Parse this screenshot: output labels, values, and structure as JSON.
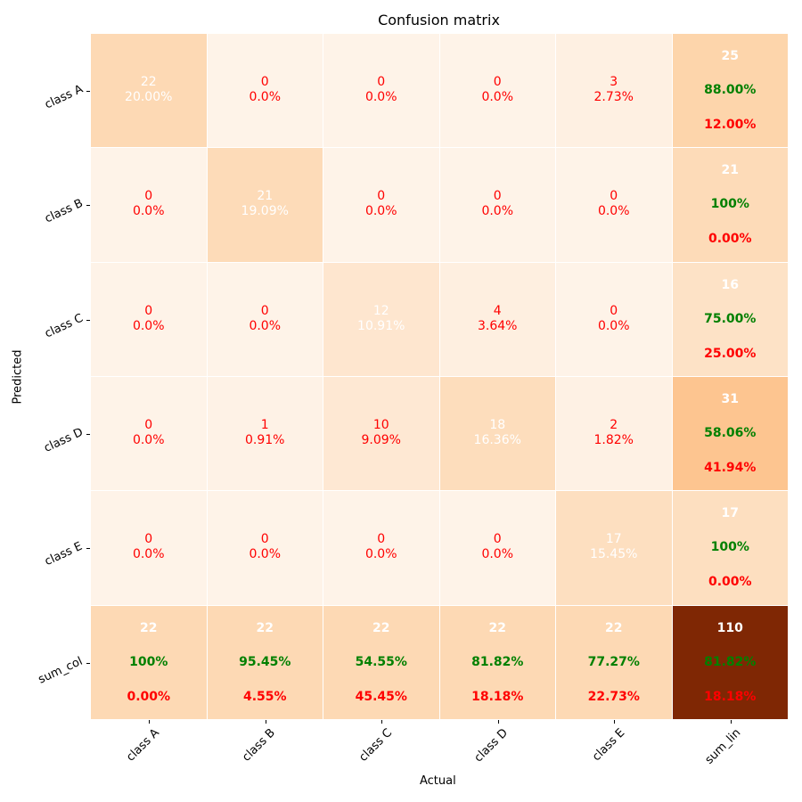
{
  "chart_data": {
    "type": "heatmap",
    "title": "Confusion matrix",
    "xlabel": "Actual",
    "ylabel": "Predicted",
    "x_tick_labels": [
      "class A",
      "class B",
      "class C",
      "class D",
      "class E",
      "sum_lin"
    ],
    "y_tick_labels": [
      "class A",
      "class B",
      "class C",
      "class D",
      "class E",
      "sum_col"
    ],
    "colormap": "Oranges",
    "rows": [
      [
        {
          "v": "22",
          "p": "20.00%",
          "c": "#fdd9b4",
          "w": true
        },
        {
          "v": "0",
          "p": "0.0%",
          "c": "#fef3e8"
        },
        {
          "v": "0",
          "p": "0.0%",
          "c": "#fef3e8"
        },
        {
          "v": "0",
          "p": "0.0%",
          "c": "#fef3e8"
        },
        {
          "v": "3",
          "p": "2.73%",
          "c": "#fef0e2"
        },
        {
          "v": "25",
          "g": "88.00%",
          "r": "12.00%",
          "c": "#fdd5ab"
        }
      ],
      [
        {
          "v": "0",
          "p": "0.0%",
          "c": "#fef3e8"
        },
        {
          "v": "21",
          "p": "19.09%",
          "c": "#fddbb8",
          "w": true
        },
        {
          "v": "0",
          "p": "0.0%",
          "c": "#fef3e8"
        },
        {
          "v": "0",
          "p": "0.0%",
          "c": "#fef3e8"
        },
        {
          "v": "0",
          "p": "0.0%",
          "c": "#fef3e8"
        },
        {
          "v": "21",
          "g": "100%",
          "r": "0.00%",
          "c": "#fddbb8"
        }
      ],
      [
        {
          "v": "0",
          "p": "0.0%",
          "c": "#fef3e8"
        },
        {
          "v": "0",
          "p": "0.0%",
          "c": "#fef3e8"
        },
        {
          "v": "12",
          "p": "10.91%",
          "c": "#fee6cf",
          "w": true
        },
        {
          "v": "4",
          "p": "3.64%",
          "c": "#feefe0"
        },
        {
          "v": "0",
          "p": "0.0%",
          "c": "#fef3e8"
        },
        {
          "v": "16",
          "g": "75.00%",
          "r": "25.00%",
          "c": "#fde2c6"
        }
      ],
      [
        {
          "v": "0",
          "p": "0.0%",
          "c": "#fef3e8"
        },
        {
          "v": "1",
          "p": "0.91%",
          "c": "#fef2e6"
        },
        {
          "v": "10",
          "p": "9.09%",
          "c": "#fee8d3"
        },
        {
          "v": "18",
          "p": "16.36%",
          "c": "#fdddbc",
          "w": true
        },
        {
          "v": "2",
          "p": "1.82%",
          "c": "#fef1e4"
        },
        {
          "v": "31",
          "g": "58.06%",
          "r": "41.94%",
          "c": "#fdc590"
        }
      ],
      [
        {
          "v": "0",
          "p": "0.0%",
          "c": "#fef3e8"
        },
        {
          "v": "0",
          "p": "0.0%",
          "c": "#fef3e8"
        },
        {
          "v": "0",
          "p": "0.0%",
          "c": "#fef3e8"
        },
        {
          "v": "0",
          "p": "0.0%",
          "c": "#fef3e8"
        },
        {
          "v": "17",
          "p": "15.45%",
          "c": "#fddfc0",
          "w": true
        },
        {
          "v": "17",
          "g": "100%",
          "r": "0.00%",
          "c": "#fddfc0"
        }
      ],
      [
        {
          "v": "22",
          "g": "100%",
          "r": "0.00%",
          "c": "#fdd9b4"
        },
        {
          "v": "22",
          "g": "95.45%",
          "r": "4.55%",
          "c": "#fdd9b4"
        },
        {
          "v": "22",
          "g": "54.55%",
          "r": "45.45%",
          "c": "#fdd9b4"
        },
        {
          "v": "22",
          "g": "81.82%",
          "r": "18.18%",
          "c": "#fdd9b4"
        },
        {
          "v": "22",
          "g": "77.27%",
          "r": "22.73%",
          "c": "#fdd9b4"
        },
        {
          "v": "110",
          "g": "81.82%",
          "r": "18.18%",
          "c": "#7f2704"
        }
      ]
    ],
    "text_colors": {
      "correct": "#ffffff",
      "error": "#ff0000",
      "ratio_good": "#008000"
    }
  }
}
